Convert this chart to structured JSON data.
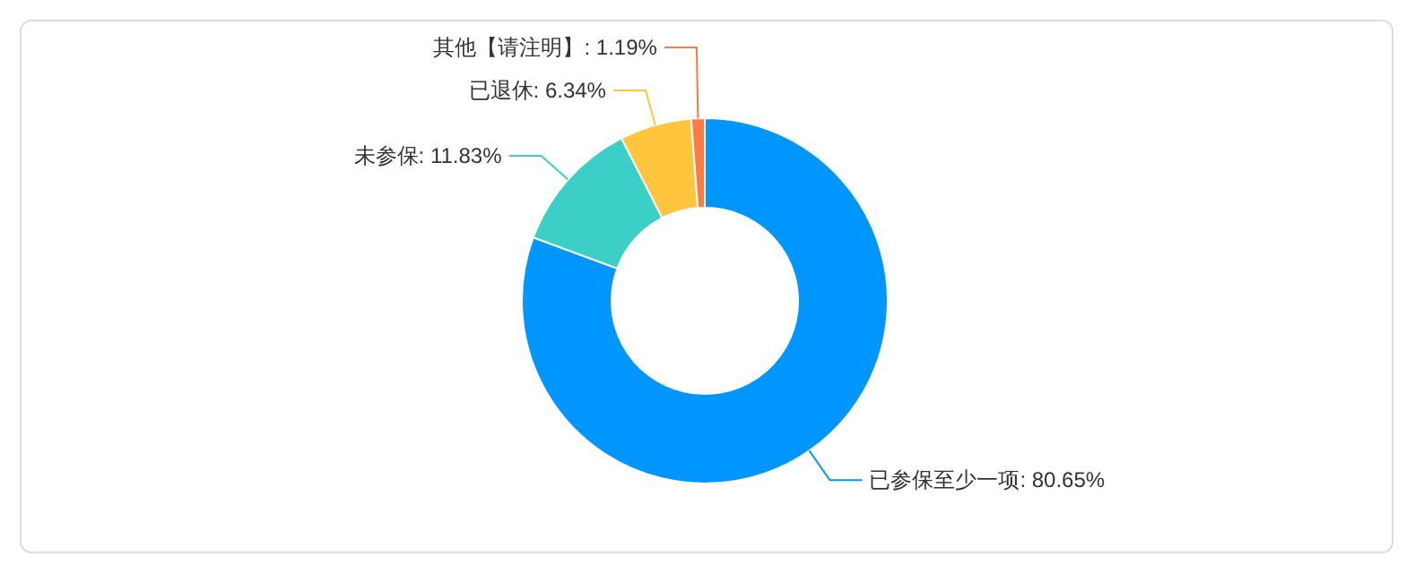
{
  "chart_data": {
    "type": "donut",
    "categories": [
      "已参保至少一项",
      "未参保",
      "已退休",
      "其他【请注明】"
    ],
    "values": [
      80.65,
      11.83,
      6.34,
      1.19
    ],
    "colors": [
      "#0096ff",
      "#3ccfc8",
      "#ffc53d",
      "#ff7a45"
    ],
    "value_labels": [
      ": 80.65%",
      ": 11.83%",
      ": 6.34%",
      ": 1.19%"
    ]
  }
}
